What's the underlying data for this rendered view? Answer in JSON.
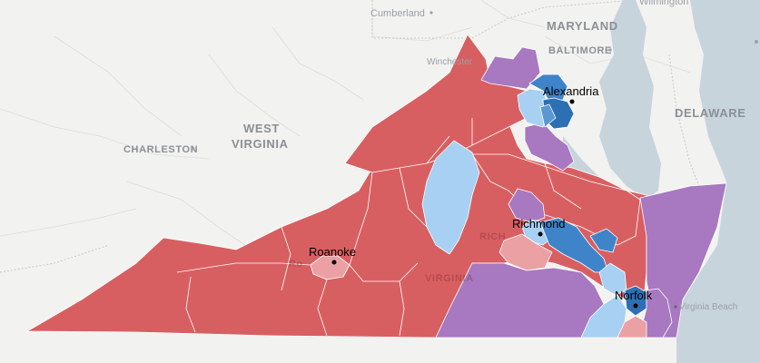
{
  "map": {
    "base_labels": {
      "cumberland": "Cumberland",
      "maryland": "MARYLAND",
      "baltimore": "BALTIMORE",
      "wilmington": "Wilmington",
      "winchester": "Winchester",
      "west_virginia_1": "WEST",
      "west_virginia_2": "VIRGINIA",
      "charleston": "CHARLESTON",
      "delaware": "DELAWARE",
      "virginia_beach": "Virginia Beach",
      "virginia_ghost": "VIRGINIA",
      "richmond_ghost": "RICH",
      "roanoke_ghost": "Ro"
    },
    "cities": [
      {
        "name": "Alexandria"
      },
      {
        "name": "Richmond"
      },
      {
        "name": "Roanoke"
      },
      {
        "name": "Norfolk"
      }
    ],
    "colors": {
      "background": "#f2f2f0",
      "water": "#c8d4dc",
      "red": "#d85f61",
      "light_red": "#eba0a3",
      "purple": "#a878c0",
      "blue": "#3f84c9",
      "dark_blue": "#2d6fb3",
      "light_blue": "#a7d0f2"
    }
  }
}
